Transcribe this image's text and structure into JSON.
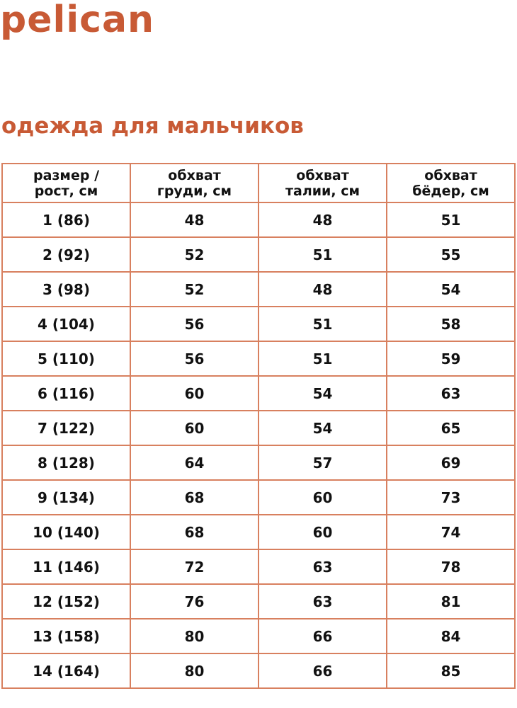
{
  "brand": {
    "logo": "pelican",
    "color": "#c85a35"
  },
  "title": "одежда для мальчиков",
  "table": {
    "headers": [
      [
        "размер /",
        "рост, см"
      ],
      [
        "обхват",
        "груди, см"
      ],
      [
        "обхват",
        "талии, см"
      ],
      [
        "обхват",
        "бёдер, см"
      ]
    ],
    "rows": [
      [
        "1 (86)",
        "48",
        "48",
        "51"
      ],
      [
        "2 (92)",
        "52",
        "51",
        "55"
      ],
      [
        "3 (98)",
        "52",
        "48",
        "54"
      ],
      [
        "4 (104)",
        "56",
        "51",
        "58"
      ],
      [
        "5 (110)",
        "56",
        "51",
        "59"
      ],
      [
        "6 (116)",
        "60",
        "54",
        "63"
      ],
      [
        "7 (122)",
        "60",
        "54",
        "65"
      ],
      [
        "8 (128)",
        "64",
        "57",
        "69"
      ],
      [
        "9 (134)",
        "68",
        "60",
        "73"
      ],
      [
        "10 (140)",
        "68",
        "60",
        "74"
      ],
      [
        "11 (146)",
        "72",
        "63",
        "78"
      ],
      [
        "12 (152)",
        "76",
        "63",
        "81"
      ],
      [
        "13 (158)",
        "80",
        "66",
        "84"
      ],
      [
        "14 (164)",
        "80",
        "66",
        "85"
      ]
    ]
  }
}
